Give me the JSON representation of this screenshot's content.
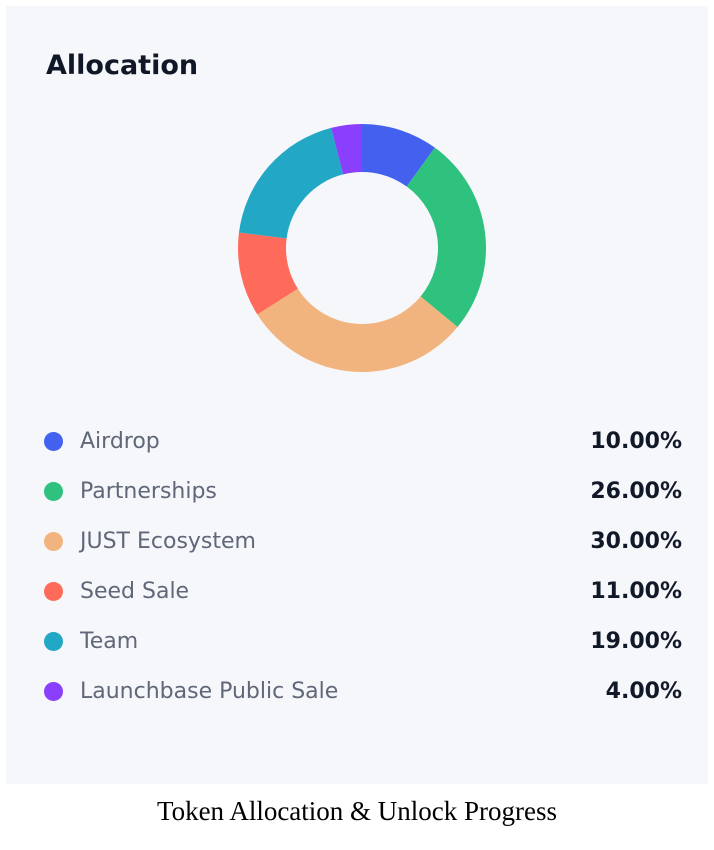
{
  "card": {
    "title": "Allocation"
  },
  "caption": "Token Allocation & Unlock Progress",
  "chart_data": {
    "type": "pie",
    "donut": true,
    "start_angle_deg": 0,
    "direction": "clockwise",
    "categories": [
      "Airdrop",
      "Partnerships",
      "JUST Ecosystem",
      "Seed Sale",
      "Team",
      "Launchbase Public Sale"
    ],
    "values": [
      10,
      26,
      30,
      11,
      19,
      4
    ],
    "value_labels": [
      "10.00%",
      "26.00%",
      "30.00%",
      "11.00%",
      "19.00%",
      "4.00%"
    ],
    "colors": [
      "#4361ee",
      "#2ec27e",
      "#f2b47e",
      "#ff6b5b",
      "#22a8c4",
      "#8a3ffc"
    ],
    "title": "Allocation",
    "legend": "below"
  }
}
